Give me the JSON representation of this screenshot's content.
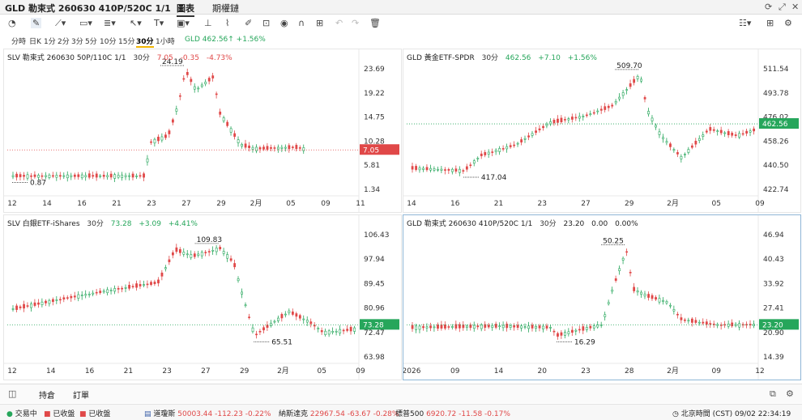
{
  "window": {
    "title": "GLD 勒束式 260630 410P/520C 1/1",
    "tabs": [
      {
        "label": "圖表",
        "active": true
      },
      {
        "label": "期權鏈",
        "active": false
      }
    ],
    "controls": [
      "refresh-icon",
      "restore-icon",
      "close-icon"
    ]
  },
  "toolbar": {
    "tools": [
      "gauge-icon",
      "pencil-icon",
      "trend-line-icon",
      "rectangle-icon",
      "indicator-icon",
      "cursor-icon",
      "text-tool-icon",
      "label-icon",
      "ruler-icon",
      "brush-icon",
      "lock-icon",
      "eye-icon",
      "magnet-icon",
      "undo-icon",
      "redo-icon",
      "trash-icon"
    ],
    "right_tools": [
      "layout-icon",
      "grid-icon",
      "settings-icon"
    ]
  },
  "intervals": {
    "items": [
      "分時",
      "日K",
      "1分",
      "2分",
      "3分",
      "5分",
      "10分",
      "15分",
      "30分",
      "1小時"
    ],
    "active": "30分",
    "quote": "GLD 462.56↑ +1.56%"
  },
  "panels": [
    {
      "id": "slv-spread",
      "symbol": "SLV 勒束式 260630 50P/110C 1/1",
      "interval": "30分",
      "last": "7.05",
      "change": "-0.35",
      "change_pct": "-4.73%",
      "direction": "down",
      "price_label": "7.05",
      "price_label_color": "#e04848",
      "yticks": [
        "23.69",
        "19.22",
        "14.75",
        "10.28",
        "5.81",
        "1.34"
      ],
      "xticks": [
        "12",
        "14",
        "16",
        "21",
        "23",
        "27",
        "29",
        "2月",
        "05",
        "09",
        "11"
      ],
      "high_label": "24.19",
      "low_label": "0.87"
    },
    {
      "id": "gld",
      "symbol": "GLD 黃金ETF-SPDR",
      "interval": "30分",
      "last": "462.56",
      "change": "+7.10",
      "change_pct": "+1.56%",
      "direction": "up",
      "price_label": "462.56",
      "price_label_color": "#26a65b",
      "yticks": [
        "511.54",
        "493.78",
        "476.02",
        "458.26",
        "440.50",
        "422.74"
      ],
      "xticks": [
        "14",
        "16",
        "21",
        "23",
        "27",
        "29",
        "2月",
        "05",
        "09"
      ],
      "high_label": "509.70",
      "low_label": "417.04"
    },
    {
      "id": "slv",
      "symbol": "SLV 白銀ETF-iShares",
      "interval": "30分",
      "last": "73.28",
      "change": "+3.09",
      "change_pct": "+4.41%",
      "direction": "up",
      "price_label": "73.28",
      "price_label_color": "#26a65b",
      "yticks": [
        "106.43",
        "97.94",
        "89.45",
        "80.96",
        "72.47",
        "63.98"
      ],
      "xticks": [
        "12",
        "14",
        "16",
        "21",
        "23",
        "27",
        "29",
        "2月",
        "05",
        "09"
      ],
      "high_label": "109.83",
      "low_label": "65.51"
    },
    {
      "id": "gld-spread",
      "symbol": "GLD 勒束式 260630 410P/520C 1/1",
      "interval": "30分",
      "last": "23.20",
      "change": "0.00",
      "change_pct": "0.00%",
      "direction": "flat",
      "price_label": "23.20",
      "price_label_color": "#26a65b",
      "yticks": [
        "46.94",
        "40.43",
        "33.92",
        "27.41",
        "20.90",
        "14.39"
      ],
      "xticks": [
        "2026",
        "09",
        "14",
        "20",
        "23",
        "28",
        "2月",
        "09",
        "12"
      ],
      "high_label": "50.25",
      "low_label": "16.29"
    }
  ],
  "bottom": {
    "tabs": [
      "持倉",
      "訂單"
    ]
  },
  "status": {
    "markets": [
      {
        "label": "交易中",
        "color": "#26a65b"
      },
      {
        "label": "已收盤",
        "color": "#e04848"
      },
      {
        "label": "已收盤",
        "color": "#e04848"
      }
    ],
    "indices": [
      {
        "name": "道瓊斯",
        "value": "50003.44",
        "change": "-112.23",
        "pct": "-0.22%"
      },
      {
        "name": "納斯達克",
        "value": "22967.54",
        "change": "-63.67",
        "pct": "-0.28%"
      },
      {
        "name": "標普500",
        "value": "6920.72",
        "change": "-11.58",
        "pct": "-0.17%"
      }
    ],
    "clock": "北京時間 (CST) 09/02 22:34:19"
  }
}
